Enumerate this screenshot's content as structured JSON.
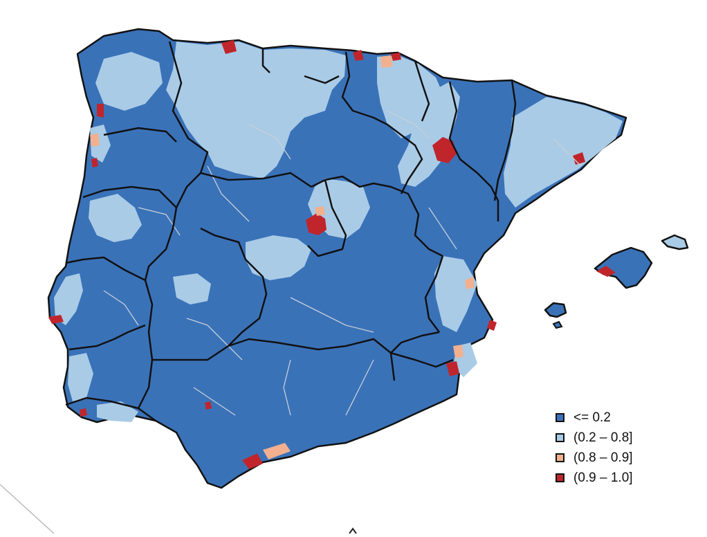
{
  "legend": {
    "items": [
      {
        "label": "<= 0.2",
        "color": "#3a72b8"
      },
      {
        "label": "(0.2 – 0.8]",
        "color": "#a9cbe6"
      },
      {
        "label": "(0.8 – 0.9]",
        "color": "#f2b08e"
      },
      {
        "label": "(0.9 – 1.0]",
        "color": "#c0252c"
      }
    ]
  },
  "colors": {
    "boundary": "#111111",
    "internal_boundary": "#c8cfd8",
    "background": "#ffffff"
  }
}
